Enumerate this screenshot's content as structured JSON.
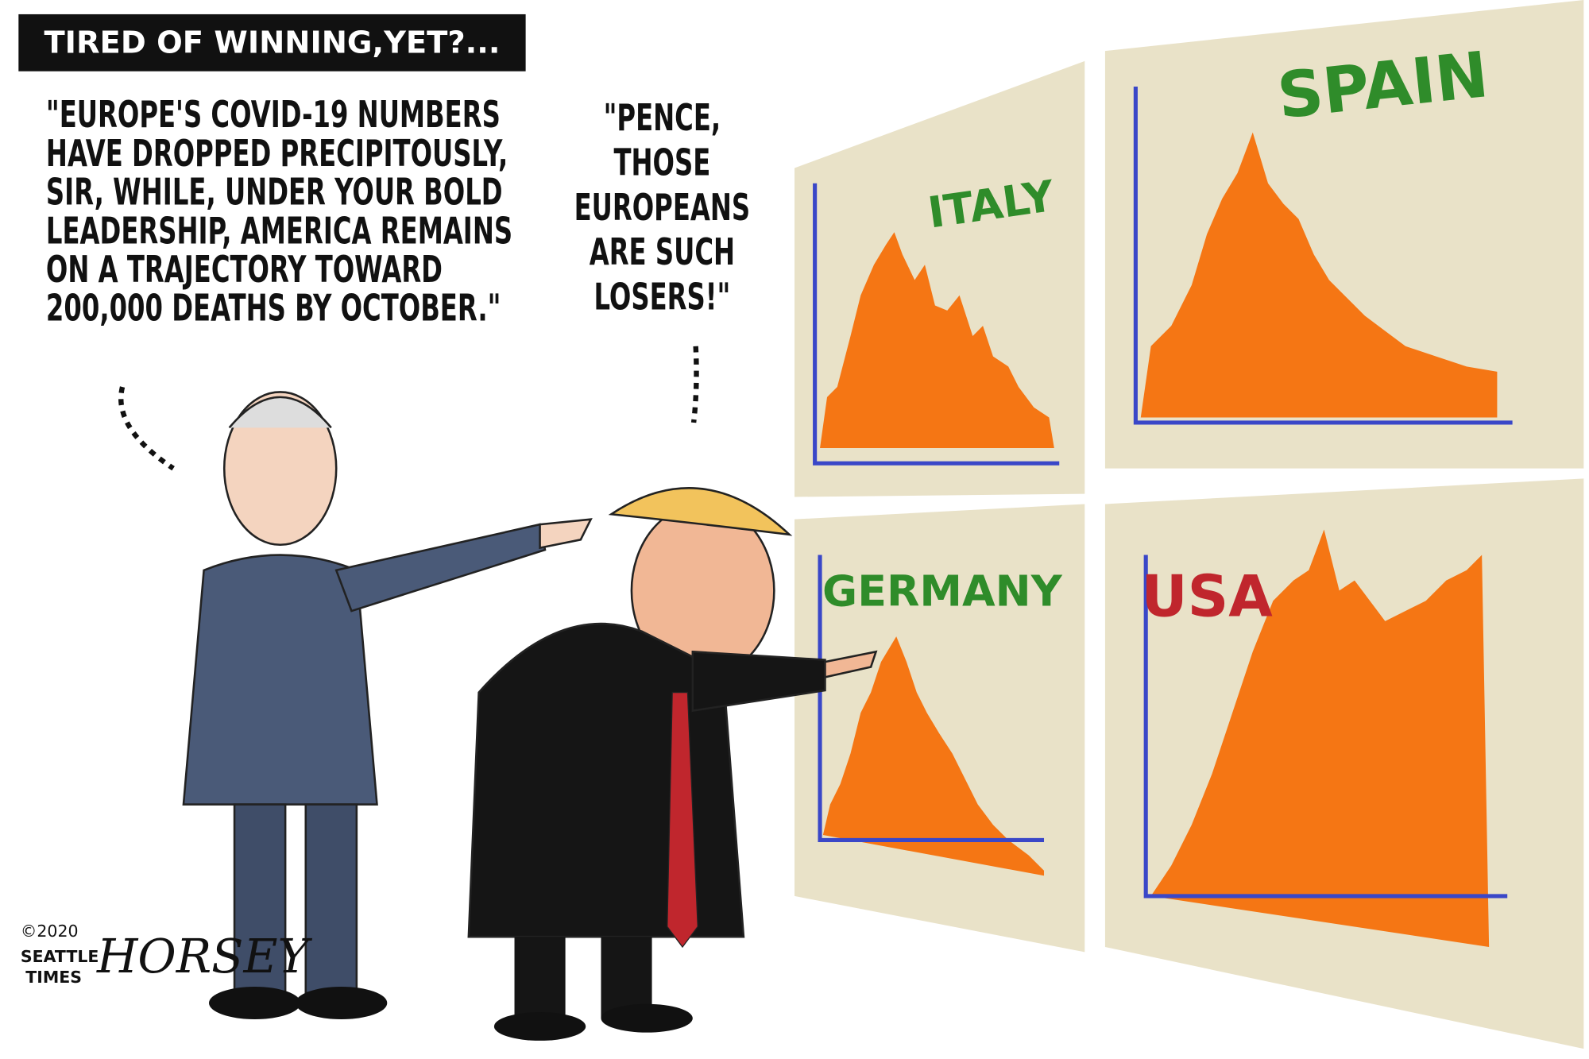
{
  "caption": "TIRED OF WINNING,YET?...",
  "speech": [
    {
      "lines": [
        "\"EUROPE'S COVID-19 NUMBERS",
        "HAVE DROPPED PRECIPITOUSLY,",
        "SIR, WHILE, UNDER YOUR BOLD",
        "LEADERSHIP, AMERICA REMAINS",
        "ON A TRAJECTORY TOWARD",
        "200,000 DEATHS BY OCTOBER.\""
      ]
    },
    {
      "lines": [
        "\"PENCE,",
        "THOSE",
        "EUROPEANS",
        "ARE SUCH",
        "LOSERS!\""
      ]
    }
  ],
  "panels": [
    {
      "label": "ITALY"
    },
    {
      "label": "SPAIN"
    },
    {
      "label": "GERMANY"
    },
    {
      "label": "USA"
    }
  ],
  "signature": {
    "copyright": "©2020",
    "publisher": [
      "SEATTLE",
      "TIMES"
    ],
    "artist": "HORSEY"
  }
}
